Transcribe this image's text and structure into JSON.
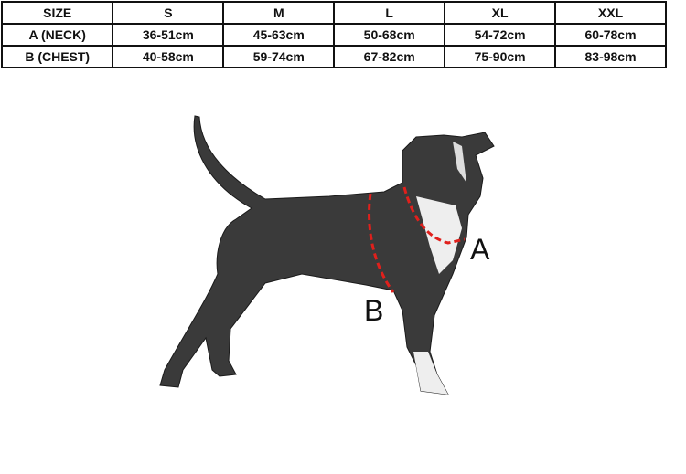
{
  "size_table": {
    "header": [
      "SIZE",
      "S",
      "M",
      "L",
      "XL",
      "XXL"
    ],
    "rows": [
      [
        "A (NECK)",
        "36-51cm",
        "45-63cm",
        "50-68cm",
        "54-72cm",
        "60-78cm"
      ],
      [
        "B (CHEST)",
        "40-58cm",
        "59-74cm",
        "67-82cm",
        "75-90cm",
        "83-98cm"
      ]
    ]
  },
  "diagram": {
    "label_a": "A",
    "label_b": "B",
    "measure_line_color": "#e0201c"
  }
}
